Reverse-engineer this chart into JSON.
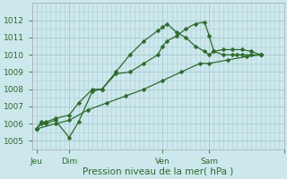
{
  "xlabel": "Pression niveau de la mer( hPa )",
  "bg_color": "#cce8ec",
  "grid_color": "#aacdd4",
  "line_color": "#2d6a2d",
  "ylim": [
    1004.5,
    1012.8
  ],
  "xlim": [
    0,
    54
  ],
  "xtick_positions": [
    1,
    8,
    28,
    38,
    54
  ],
  "xtick_labels": [
    "Jeu",
    "Dim",
    "Ven",
    "Sam",
    ""
  ],
  "ytick_positions": [
    1005,
    1006,
    1007,
    1008,
    1009,
    1010,
    1011,
    1012
  ],
  "ytick_labels": [
    "1005",
    "1006",
    "1007",
    "1008",
    "1009",
    "1010",
    "1011",
    "1012"
  ],
  "vlines": [
    8,
    38
  ],
  "series1_x": [
    1,
    2,
    3,
    5,
    8,
    10,
    13,
    15,
    18,
    21,
    24,
    27,
    28,
    29,
    31,
    33,
    35,
    37,
    38,
    39,
    41,
    43,
    44,
    45,
    47,
    49
  ],
  "series1_y": [
    1005.7,
    1006.0,
    1006.1,
    1006.3,
    1006.5,
    1007.2,
    1008.0,
    1008.0,
    1008.9,
    1009.0,
    1009.5,
    1010.0,
    1010.5,
    1010.8,
    1011.1,
    1011.5,
    1011.8,
    1011.9,
    1011.1,
    1010.2,
    1010.0,
    1010.0,
    1010.0,
    1010.0,
    1010.0,
    1010.0
  ],
  "series2_x": [
    1,
    2,
    3,
    5,
    8,
    10,
    13,
    15,
    18,
    21,
    24,
    27,
    28,
    29,
    31,
    33,
    35,
    37,
    38,
    39,
    41,
    43,
    45,
    47,
    49
  ],
  "series2_y": [
    1005.7,
    1006.1,
    1006.0,
    1006.2,
    1005.2,
    1006.1,
    1007.9,
    1008.0,
    1009.0,
    1010.0,
    1010.8,
    1011.4,
    1011.6,
    1011.8,
    1011.3,
    1011.0,
    1010.5,
    1010.2,
    1010.0,
    1010.2,
    1010.3,
    1010.3,
    1010.3,
    1010.2,
    1010.0
  ],
  "series3_x": [
    1,
    5,
    8,
    12,
    16,
    20,
    24,
    28,
    32,
    36,
    38,
    42,
    46,
    49
  ],
  "series3_y": [
    1005.7,
    1006.0,
    1006.2,
    1006.8,
    1007.2,
    1007.6,
    1008.0,
    1008.5,
    1009.0,
    1009.5,
    1009.5,
    1009.7,
    1009.9,
    1010.0
  ]
}
